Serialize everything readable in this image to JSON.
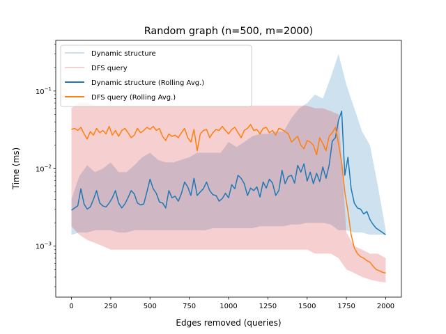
{
  "chart_data": {
    "type": "line",
    "title": "Random graph (n=500, m=2000)",
    "xlabel": "Edges removed (queries)",
    "ylabel": "Time (ms)",
    "yscale": "log",
    "xlim": [
      -100,
      2100
    ],
    "ylim": [
      0.00022,
      0.45
    ],
    "xticks": [
      0,
      250,
      500,
      750,
      1000,
      1250,
      1500,
      1750,
      2000
    ],
    "xtick_labels": [
      "0",
      "250",
      "500",
      "750",
      "1000",
      "1250",
      "1500",
      "1750",
      "2000"
    ],
    "yticks": [
      0.001,
      0.01,
      0.1
    ],
    "ytick_labels": [
      "10",
      "10",
      "10"
    ],
    "ytick_exponents": [
      "−3",
      "−2",
      "−1"
    ],
    "grid": false,
    "legend_position": "top-left",
    "series": [
      {
        "name": "Dynamic structure",
        "color": "#1f77b4",
        "opacity": 0.22,
        "kind": "raw",
        "x": [
          0,
          50,
          100,
          150,
          200,
          250,
          300,
          350,
          400,
          450,
          500,
          550,
          600,
          650,
          700,
          750,
          800,
          850,
          900,
          950,
          1000,
          1050,
          1100,
          1150,
          1200,
          1250,
          1300,
          1350,
          1400,
          1450,
          1500,
          1550,
          1600,
          1650,
          1700,
          1750,
          1800,
          1850,
          1900,
          1950,
          2000
        ],
        "low": [
          0.0014,
          0.0015,
          0.0015,
          0.0016,
          0.0016,
          0.0016,
          0.0015,
          0.0015,
          0.0016,
          0.0016,
          0.0016,
          0.0016,
          0.0016,
          0.0016,
          0.0016,
          0.0016,
          0.0016,
          0.0016,
          0.0017,
          0.0017,
          0.0017,
          0.0017,
          0.0017,
          0.0017,
          0.0018,
          0.0018,
          0.0018,
          0.0018,
          0.0019,
          0.0019,
          0.002,
          0.002,
          0.002,
          0.0019,
          0.0016,
          0.0016,
          0.0015,
          0.0015,
          0.0014,
          0.0014,
          0.0014
        ],
        "high": [
          0.004,
          0.008,
          0.011,
          0.009,
          0.01,
          0.012,
          0.009,
          0.009,
          0.011,
          0.014,
          0.016,
          0.013,
          0.012,
          0.012,
          0.013,
          0.014,
          0.016,
          0.016,
          0.016,
          0.016,
          0.022,
          0.019,
          0.022,
          0.026,
          0.028,
          0.028,
          0.03,
          0.03,
          0.045,
          0.06,
          0.07,
          0.09,
          0.08,
          0.15,
          0.3,
          0.12,
          0.06,
          0.03,
          0.02,
          0.006,
          0.0016
        ]
      },
      {
        "name": "DFS query",
        "color": "#d62728",
        "opacity": 0.22,
        "kind": "raw",
        "x": [
          0,
          50,
          100,
          150,
          200,
          250,
          300,
          350,
          400,
          450,
          500,
          550,
          600,
          650,
          700,
          750,
          800,
          850,
          900,
          950,
          1000,
          1050,
          1100,
          1150,
          1200,
          1250,
          1300,
          1350,
          1400,
          1450,
          1500,
          1550,
          1600,
          1650,
          1700,
          1750,
          1800,
          1850,
          1900,
          1950,
          2000
        ],
        "low": [
          0.0018,
          0.0014,
          0.0012,
          0.0011,
          0.001,
          0.0009,
          0.0009,
          0.0009,
          0.0009,
          0.0009,
          0.0009,
          0.0009,
          0.0009,
          0.0009,
          0.0009,
          0.0009,
          0.0009,
          0.0009,
          0.0009,
          0.0009,
          0.0009,
          0.0009,
          0.0009,
          0.0009,
          0.0009,
          0.0009,
          0.0009,
          0.0009,
          0.0009,
          0.0009,
          0.0009,
          0.0008,
          0.0008,
          0.0008,
          0.0007,
          0.0005,
          0.00045,
          0.0004,
          0.00037,
          0.00035,
          0.00034
        ],
        "high": [
          0.06,
          0.07,
          0.07,
          0.065,
          0.065,
          0.065,
          0.065,
          0.065,
          0.065,
          0.065,
          0.065,
          0.065,
          0.065,
          0.065,
          0.065,
          0.065,
          0.065,
          0.065,
          0.065,
          0.065,
          0.065,
          0.065,
          0.065,
          0.065,
          0.065,
          0.065,
          0.065,
          0.065,
          0.065,
          0.065,
          0.065,
          0.06,
          0.06,
          0.055,
          0.05,
          0.0015,
          0.001,
          0.0009,
          0.0008,
          0.0008,
          0.0007
        ]
      },
      {
        "name": "Dynamic structure (Rolling Avg.)",
        "color": "#1f77b4",
        "opacity": 1,
        "kind": "line",
        "x": [
          0,
          20,
          40,
          60,
          80,
          100,
          120,
          140,
          160,
          180,
          200,
          220,
          240,
          260,
          280,
          300,
          320,
          340,
          360,
          380,
          400,
          420,
          440,
          460,
          480,
          500,
          520,
          540,
          560,
          580,
          600,
          620,
          640,
          660,
          680,
          700,
          720,
          740,
          760,
          780,
          800,
          820,
          840,
          860,
          880,
          900,
          920,
          940,
          960,
          980,
          1000,
          1020,
          1040,
          1060,
          1080,
          1100,
          1120,
          1140,
          1160,
          1180,
          1200,
          1220,
          1240,
          1260,
          1280,
          1300,
          1320,
          1340,
          1360,
          1380,
          1400,
          1420,
          1440,
          1460,
          1480,
          1500,
          1520,
          1540,
          1560,
          1580,
          1600,
          1620,
          1640,
          1660,
          1680,
          1700,
          1720,
          1740,
          1760,
          1780,
          1800,
          1820,
          1840,
          1860,
          1880,
          1900,
          1920,
          1940,
          1960,
          1980,
          2000
        ],
        "y": [
          0.0029,
          0.0031,
          0.0033,
          0.0055,
          0.0035,
          0.003,
          0.0032,
          0.004,
          0.0052,
          0.0036,
          0.0033,
          0.0032,
          0.0036,
          0.0042,
          0.0052,
          0.0036,
          0.0031,
          0.0035,
          0.0042,
          0.0052,
          0.0047,
          0.0036,
          0.0034,
          0.0035,
          0.005,
          0.0073,
          0.0055,
          0.0048,
          0.0037,
          0.0036,
          0.0031,
          0.0052,
          0.0042,
          0.0044,
          0.0038,
          0.0048,
          0.0067,
          0.0058,
          0.0045,
          0.0075,
          0.0045,
          0.005,
          0.0055,
          0.0067,
          0.0052,
          0.0046,
          0.0045,
          0.0038,
          0.0041,
          0.0048,
          0.0042,
          0.0062,
          0.0055,
          0.0082,
          0.0075,
          0.0064,
          0.0045,
          0.0056,
          0.0052,
          0.0058,
          0.0043,
          0.0067,
          0.0056,
          0.0073,
          0.0065,
          0.0045,
          0.0052,
          0.0095,
          0.0064,
          0.0079,
          0.0082,
          0.0065,
          0.011,
          0.009,
          0.0115,
          0.0069,
          0.009,
          0.0064,
          0.0087,
          0.0068,
          0.0105,
          0.0075,
          0.011,
          0.0225,
          0.025,
          0.042,
          0.055,
          0.0082,
          0.014,
          0.0055,
          0.0036,
          0.0031,
          0.003,
          0.0026,
          0.0028,
          0.0022,
          0.0019,
          0.0017,
          0.0016,
          0.0015,
          0.0014
        ]
      },
      {
        "name": "DFS query (Rolling Avg.)",
        "color": "#ff7f0e",
        "opacity": 1,
        "kind": "line",
        "x": [
          0,
          20,
          40,
          60,
          80,
          100,
          120,
          140,
          160,
          180,
          200,
          220,
          240,
          260,
          280,
          300,
          320,
          340,
          360,
          380,
          400,
          420,
          440,
          460,
          480,
          500,
          520,
          540,
          560,
          580,
          600,
          620,
          640,
          660,
          680,
          700,
          720,
          740,
          760,
          780,
          800,
          820,
          840,
          860,
          880,
          900,
          920,
          940,
          960,
          980,
          1000,
          1020,
          1040,
          1060,
          1080,
          1100,
          1120,
          1140,
          1160,
          1180,
          1200,
          1220,
          1240,
          1260,
          1280,
          1300,
          1320,
          1340,
          1360,
          1380,
          1400,
          1420,
          1440,
          1460,
          1480,
          1500,
          1520,
          1540,
          1560,
          1580,
          1600,
          1620,
          1640,
          1660,
          1680,
          1700,
          1720,
          1740,
          1760,
          1780,
          1800,
          1820,
          1840,
          1860,
          1880,
          1900,
          1920,
          1940,
          1960,
          1980,
          2000
        ],
        "y": [
          0.032,
          0.033,
          0.031,
          0.034,
          0.028,
          0.024,
          0.03,
          0.027,
          0.033,
          0.029,
          0.031,
          0.028,
          0.035,
          0.027,
          0.031,
          0.026,
          0.031,
          0.033,
          0.029,
          0.025,
          0.027,
          0.033,
          0.029,
          0.031,
          0.034,
          0.032,
          0.035,
          0.031,
          0.033,
          0.026,
          0.023,
          0.028,
          0.026,
          0.027,
          0.025,
          0.029,
          0.033,
          0.025,
          0.022,
          0.032,
          0.017,
          0.028,
          0.031,
          0.032,
          0.025,
          0.029,
          0.032,
          0.031,
          0.035,
          0.031,
          0.028,
          0.032,
          0.034,
          0.029,
          0.025,
          0.031,
          0.033,
          0.037,
          0.031,
          0.032,
          0.028,
          0.033,
          0.034,
          0.029,
          0.031,
          0.027,
          0.033,
          0.032,
          0.03,
          0.028,
          0.022,
          0.024,
          0.026,
          0.02,
          0.018,
          0.023,
          0.022,
          0.02,
          0.015,
          0.025,
          0.021,
          0.017,
          0.026,
          0.029,
          0.034,
          0.021,
          0.012,
          0.005,
          0.0028,
          0.0014,
          0.00095,
          0.0008,
          0.00073,
          0.0007,
          0.00065,
          0.00062,
          0.00055,
          0.0005,
          0.00048,
          0.00046,
          0.00045
        ]
      }
    ]
  }
}
